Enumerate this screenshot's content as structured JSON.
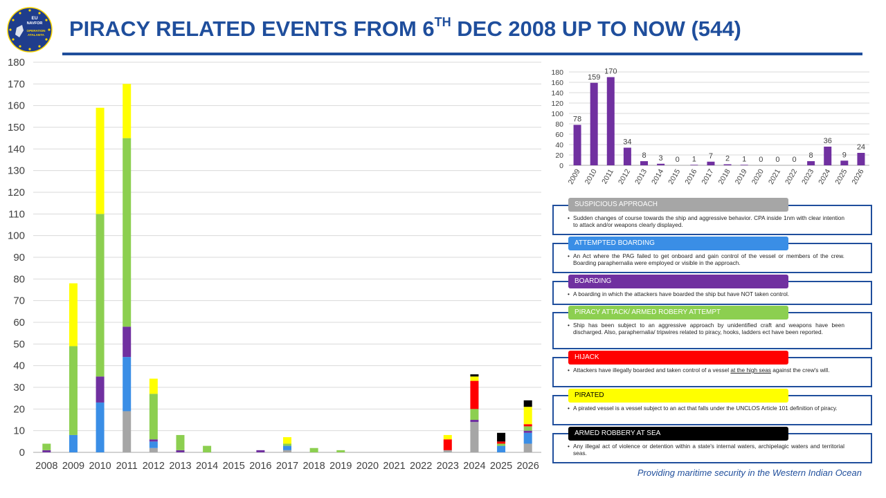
{
  "header": {
    "title_main": "PIRACY RELATED EVENTS FROM 6",
    "title_sup": "TH",
    "title_rest": " DEC 2008 UP TO NOW (544)",
    "logo_text_1": "EU",
    "logo_text_2": "NAVFOR",
    "logo_text_3": "OPERATION",
    "logo_text_4": "ATALANTA"
  },
  "footer": "Providing maritime security in the Western Indian Ocean",
  "colors": {
    "suspicious_approach": "#a6a6a6",
    "attempted_boarding": "#3a8ee6",
    "boarding": "#7030a0",
    "piracy_attack": "#8ccf50",
    "hijack": "#ff0000",
    "pirated": "#ffff00",
    "armed_robbery": "#000000",
    "mini_bar": "#7030a0",
    "title": "#1f4e9c"
  },
  "chart_data": [
    {
      "type": "bar",
      "stacked": true,
      "title": "",
      "xlabel": "",
      "ylabel": "",
      "ylim": [
        0,
        180
      ],
      "yticks": [
        0,
        10,
        20,
        30,
        40,
        50,
        60,
        70,
        80,
        90,
        100,
        110,
        120,
        130,
        140,
        150,
        160,
        170,
        180
      ],
      "grid": true,
      "legend": "none",
      "categories": [
        "2008",
        "2009",
        "2010",
        "2011",
        "2012",
        "2013",
        "2014",
        "2015",
        "2016",
        "2017",
        "2018",
        "2019",
        "2020",
        "2021",
        "2022",
        "2023",
        "2024",
        "2025",
        "2026"
      ],
      "series": [
        {
          "key": "suspicious_approach",
          "values": [
            0,
            0,
            0,
            19,
            2,
            0,
            0,
            0,
            0,
            1,
            0,
            0,
            0,
            0,
            0,
            1,
            14,
            0,
            4
          ]
        },
        {
          "key": "attempted_boarding",
          "values": [
            0,
            8,
            23,
            25,
            3,
            0,
            0,
            0,
            0,
            2,
            0,
            0,
            0,
            0,
            0,
            0,
            0,
            3,
            5
          ]
        },
        {
          "key": "boarding",
          "values": [
            1,
            0,
            12,
            14,
            1,
            1,
            0,
            0,
            1,
            0,
            0,
            0,
            0,
            0,
            0,
            0,
            1,
            0,
            1
          ]
        },
        {
          "key": "piracy_attack",
          "values": [
            3,
            41,
            75,
            87,
            21,
            7,
            3,
            0,
            0,
            1,
            2,
            1,
            0,
            0,
            0,
            0,
            5,
            1,
            2
          ]
        },
        {
          "key": "hijack",
          "values": [
            0,
            0,
            0,
            0,
            0,
            0,
            0,
            0,
            0,
            0,
            0,
            0,
            0,
            0,
            0,
            5,
            13,
            1,
            1
          ]
        },
        {
          "key": "pirated",
          "values": [
            0,
            29,
            49,
            25,
            7,
            0,
            0,
            0,
            0,
            3,
            0,
            0,
            0,
            0,
            0,
            2,
            2,
            0,
            8
          ]
        },
        {
          "key": "armed_robbery",
          "values": [
            0,
            0,
            0,
            0,
            0,
            0,
            0,
            0,
            0,
            0,
            0,
            0,
            0,
            0,
            0,
            0,
            1,
            4,
            3
          ]
        }
      ]
    },
    {
      "type": "bar",
      "title": "",
      "xlabel": "",
      "ylabel": "",
      "ylim": [
        0,
        180
      ],
      "yticks": [
        0,
        20,
        40,
        60,
        80,
        100,
        120,
        140,
        160,
        180
      ],
      "grid": true,
      "legend": "none",
      "categories": [
        "2009",
        "2010",
        "2011",
        "2012",
        "2013",
        "2014",
        "2015",
        "2016",
        "2017",
        "2018",
        "2019",
        "2020",
        "2021",
        "2022",
        "2023",
        "2024",
        "2025",
        "2026"
      ],
      "values": [
        78,
        159,
        170,
        34,
        8,
        3,
        0,
        1,
        7,
        2,
        1,
        0,
        0,
        0,
        8,
        36,
        9,
        24
      ],
      "data_labels": [
        "78",
        "159",
        "170",
        "34",
        "8",
        "3",
        "0",
        "1",
        "7",
        "2",
        "1",
        "0",
        "0",
        "0",
        "8",
        "36",
        "9",
        "24"
      ]
    }
  ],
  "definitions": [
    {
      "key": "suspicious_approach",
      "label": "SUSPICIOUS APPROACH",
      "text": "Sudden changes of course towards the ship and aggressive behavior. CPA inside 1nm with clear intention to attack and/or weapons clearly displayed."
    },
    {
      "key": "attempted_boarding",
      "label": "ATTEMPTED  BOARDING",
      "text": "An Act where the PAG failed to get onboard and gain control of the vessel or members of the crew. Boarding paraphernalia were employed or visible in the approach."
    },
    {
      "key": "boarding",
      "label": "BOARDING",
      "text": "A boarding in which the attackers have boarded the ship but have NOT taken control."
    },
    {
      "key": "piracy_attack",
      "label": "PIRACY ATTACK/ ARMED ROBERY ATTEMPT",
      "text": "Ship has been subject to an aggressive approach by unidentified craft and weapons have been discharged. Also, paraphernalia/ tripwires related to piracy, hooks, ladders ect have been reported."
    },
    {
      "key": "hijack",
      "label": "HIJACK",
      "text_before": "Attackers have illegally boarded and taken control of a vessel ",
      "text_underlined": "at the high seas",
      "text_after": " against the crew's will."
    },
    {
      "key": "pirated",
      "label": "PIRATED",
      "text": "A pirated vessel is a vessel subject to an act that falls under the UNCLOS Article 101 definition of piracy."
    },
    {
      "key": "armed_robbery",
      "label": "ARMED ROBBERY AT SEA",
      "text": "Any illegal act of violence or detention within a state's internal waters, archipelagic waters and territorial seas."
    }
  ]
}
